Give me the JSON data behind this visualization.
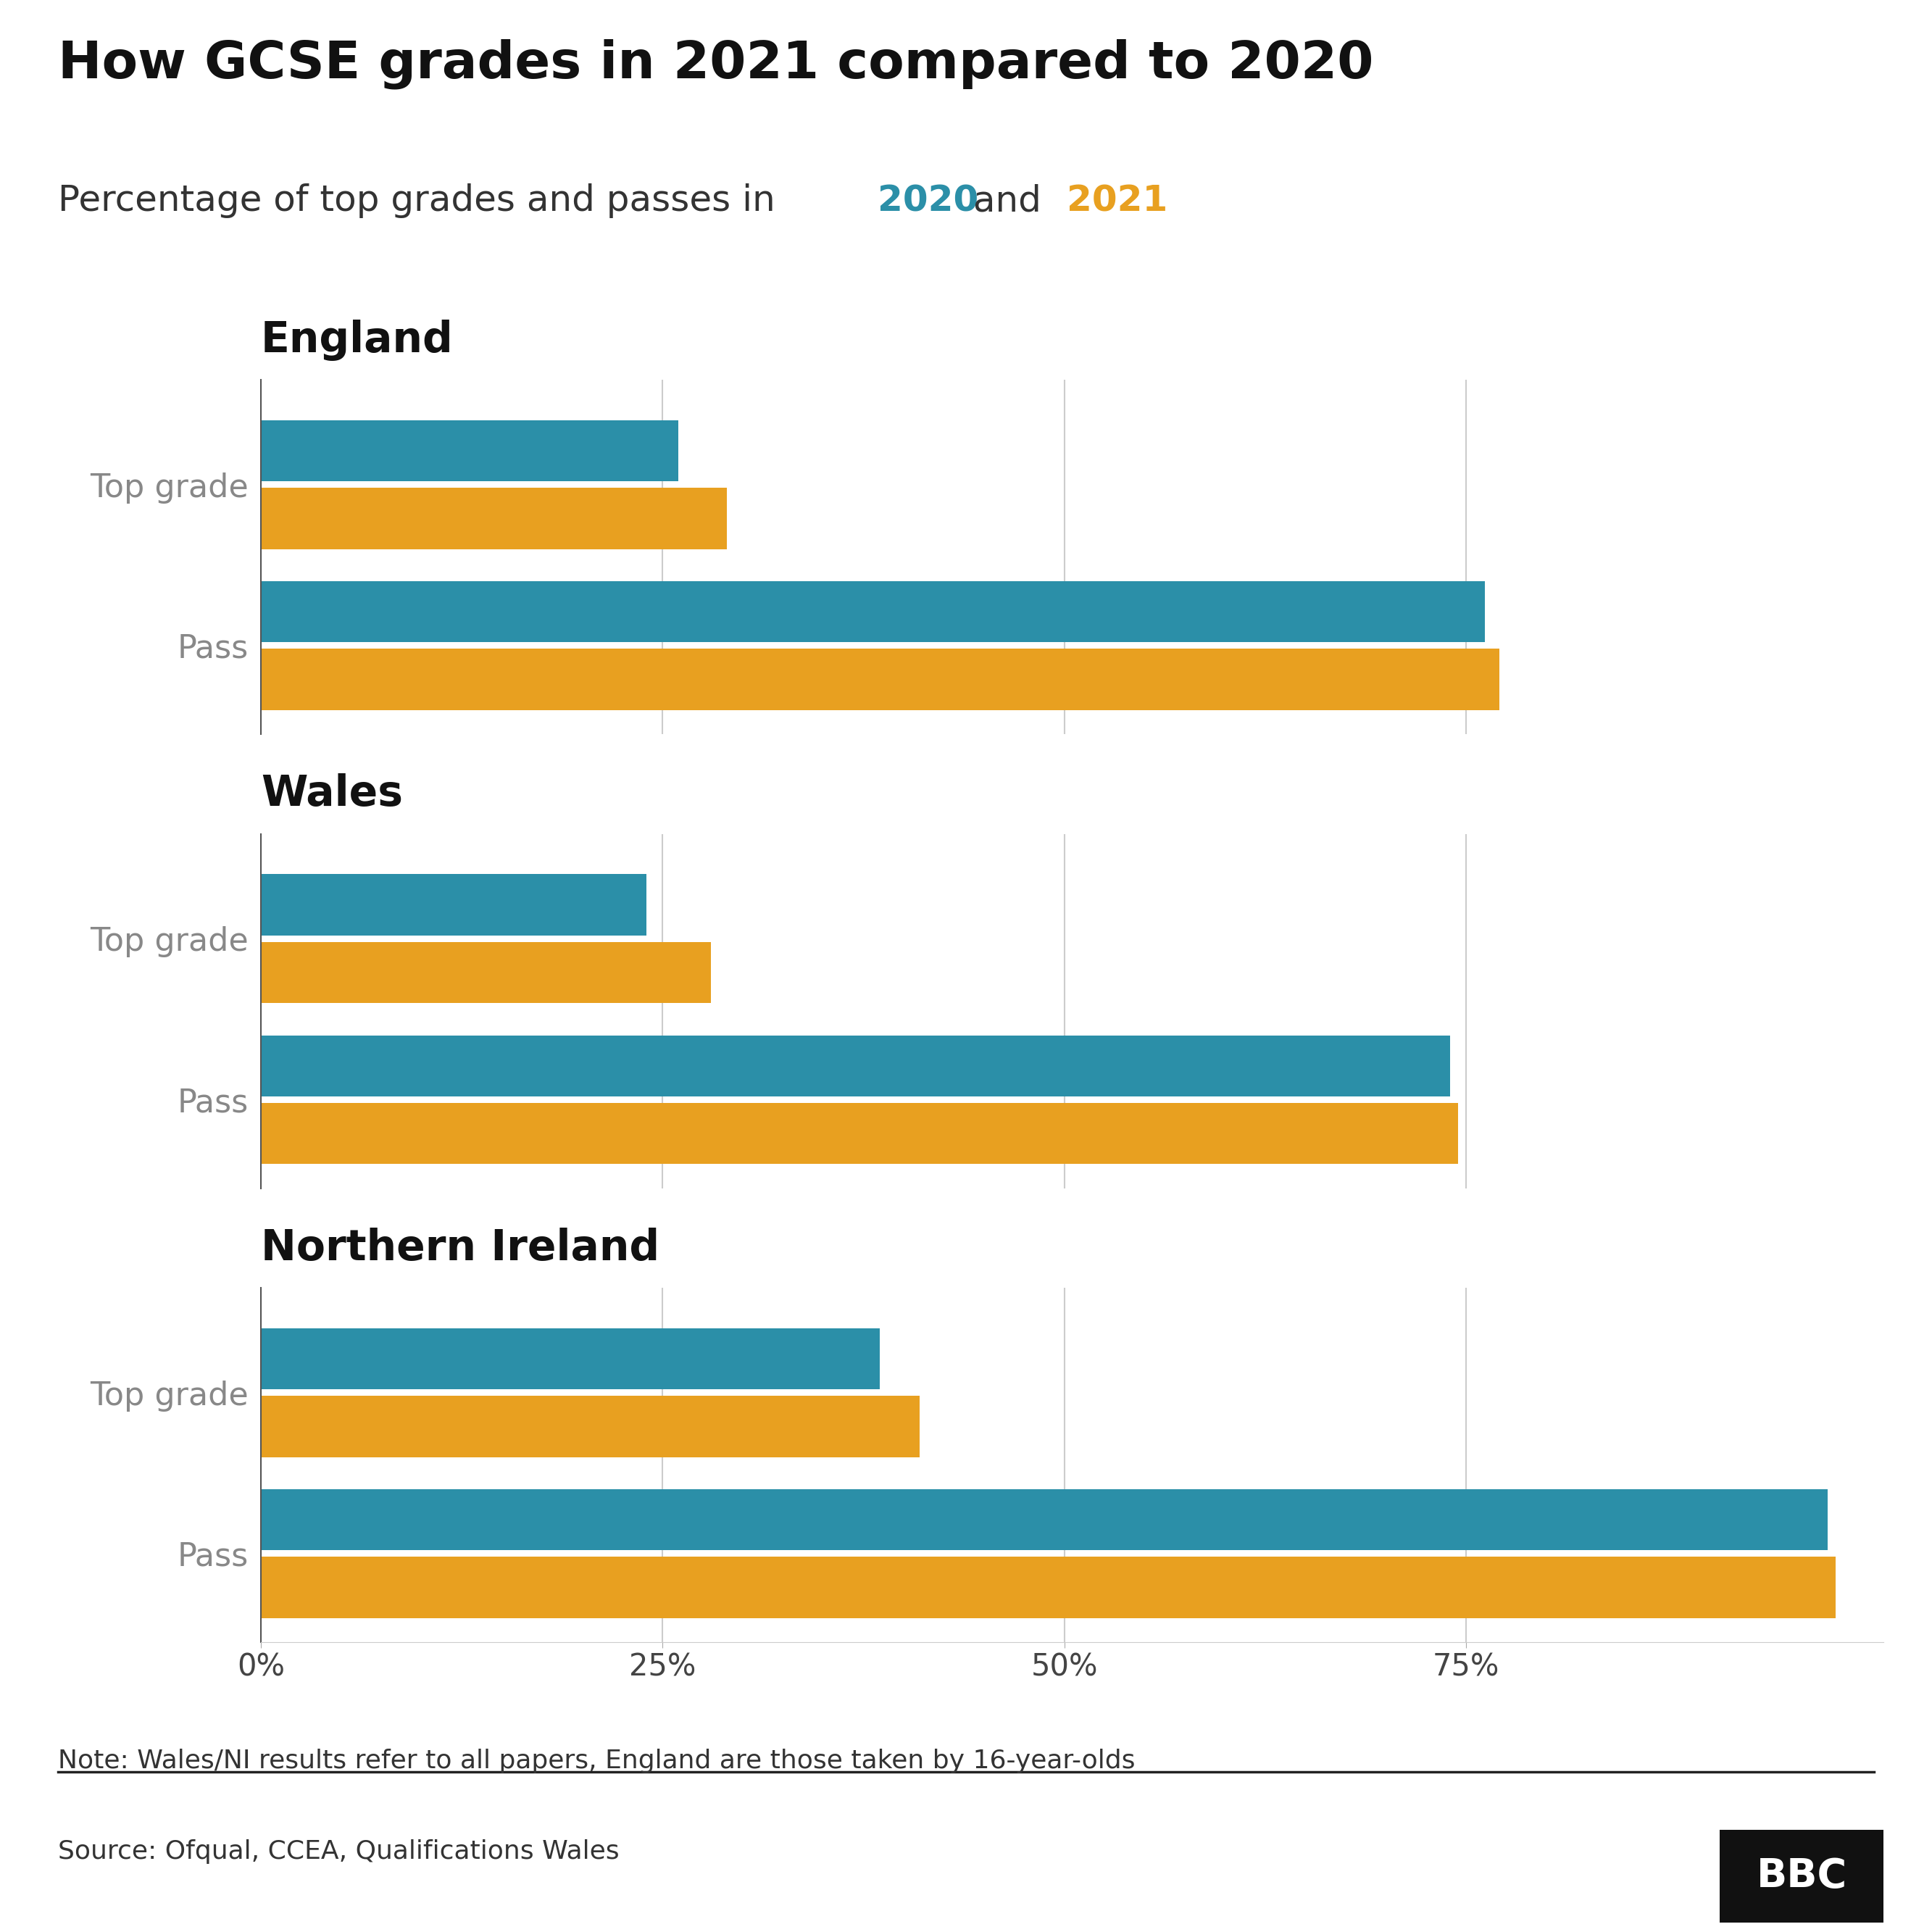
{
  "title": "How GCSE grades in 2021 compared to 2020",
  "subtitle_plain": "Percentage of top grades and passes in ",
  "subtitle_year1": "2020",
  "subtitle_year2": "2021",
  "subtitle_and": " and ",
  "color_2020": "#2b8fa8",
  "color_2021": "#e8a020",
  "color_title": "#111111",
  "color_section": "#111111",
  "color_ylabel": "#888888",
  "background_color": "#ffffff",
  "sections": [
    "England",
    "Wales",
    "Northern Ireland"
  ],
  "categories": [
    "Top grade",
    "Pass"
  ],
  "data": {
    "England": {
      "Top grade": {
        "2020": 26.0,
        "2021": 29.0
      },
      "Pass": {
        "2020": 76.2,
        "2021": 77.1
      }
    },
    "Wales": {
      "Top grade": {
        "2020": 24.0,
        "2021": 28.0
      },
      "Pass": {
        "2020": 74.0,
        "2021": 74.5
      }
    },
    "Northern Ireland": {
      "Top grade": {
        "2020": 38.5,
        "2021": 41.0
      },
      "Pass": {
        "2020": 97.5,
        "2021": 98.0
      }
    }
  },
  "xlim": [
    0,
    101
  ],
  "xticks": [
    0,
    25,
    50,
    75
  ],
  "xticklabels": [
    "0%",
    "25%",
    "50%",
    "75%"
  ],
  "note_text": "Note: Wales/NI results refer to all papers, England are those taken by 16-year-olds",
  "source_text": "Source: Ofqual, CCEA, Qualifications Wales",
  "grid_color": "#cccccc",
  "bar_height": 0.38,
  "title_fontsize": 52,
  "subtitle_fontsize": 36,
  "section_fontsize": 42,
  "ylabel_fontsize": 32,
  "tick_fontsize": 30,
  "note_fontsize": 26,
  "source_fontsize": 26
}
